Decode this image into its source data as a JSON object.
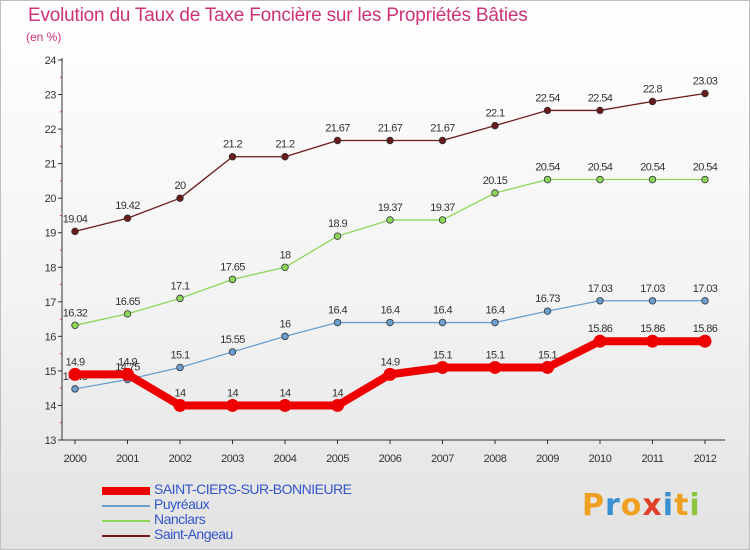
{
  "title": "Evolution du Taux de Taxe Foncière sur les Propriétés Bâties",
  "unit_label": "(en %)",
  "logo": {
    "letters": [
      "P",
      "r",
      "o",
      "x",
      "i",
      "t",
      "i"
    ],
    "colors": [
      "#f0a020",
      "#3a8fd0",
      "#f0a020",
      "#e0402a",
      "#3a8fd0",
      "#f0a020",
      "#8cc63f"
    ]
  },
  "chart_data": {
    "type": "line",
    "x": [
      "2000",
      "2001",
      "2002",
      "2003",
      "2004",
      "2005",
      "2006",
      "2007",
      "2008",
      "2009",
      "2010",
      "2011",
      "2012"
    ],
    "ylim": [
      13,
      24
    ],
    "yticks": [
      "13",
      "14",
      "15",
      "16",
      "17",
      "18",
      "19",
      "20",
      "21",
      "22",
      "23",
      "24"
    ],
    "grid": false,
    "legend_position": "bottom-left",
    "series": [
      {
        "name": "Saint-Angeau",
        "color": "#6b1a1a",
        "values": [
          19.04,
          19.42,
          20,
          21.2,
          21.2,
          21.67,
          21.67,
          21.67,
          22.1,
          22.54,
          22.54,
          22.8,
          23.03
        ],
        "labels": [
          "19.04",
          "19.42",
          "20",
          "21.2",
          "21.2",
          "21.67",
          "21.67",
          "21.67",
          "22.1",
          "22.54",
          "22.54",
          "22.8",
          "23.03"
        ]
      },
      {
        "name": "Nanclars",
        "color": "#8cd65a",
        "values": [
          16.32,
          16.65,
          17.1,
          17.65,
          18,
          18.9,
          19.37,
          19.37,
          20.15,
          20.54,
          20.54,
          20.54,
          20.54
        ],
        "labels": [
          "16.32",
          "16.65",
          "17.1",
          "17.65",
          "18",
          "18.9",
          "19.37",
          "19.37",
          "20.15",
          "20.54",
          "20.54",
          "20.54",
          "20.54"
        ]
      },
      {
        "name": "Puyréaux",
        "color": "#6a9fcf",
        "values": [
          14.48,
          14.75,
          15.1,
          15.55,
          16,
          16.4,
          16.4,
          16.4,
          16.4,
          16.73,
          17.03,
          17.03,
          17.03
        ],
        "labels": [
          "14.48",
          "14.75",
          "15.1",
          "15.55",
          "16",
          "16.4",
          "16.4",
          "16.4",
          "16.4",
          "16.73",
          "17.03",
          "17.03",
          "17.03"
        ]
      },
      {
        "name": "SAINT-CIERS-SUR-BONNIEURE",
        "color": "#ee0000",
        "values": [
          14.9,
          14.9,
          14,
          14,
          14,
          14,
          14.9,
          15.1,
          15.1,
          15.1,
          15.86,
          15.86,
          15.86
        ],
        "labels": [
          "14.9",
          "14.9",
          "14",
          "14",
          "14",
          "14",
          "14.9",
          "15.1",
          "15.1",
          "15.1",
          "15.86",
          "15.86",
          "15.86"
        ]
      }
    ]
  }
}
